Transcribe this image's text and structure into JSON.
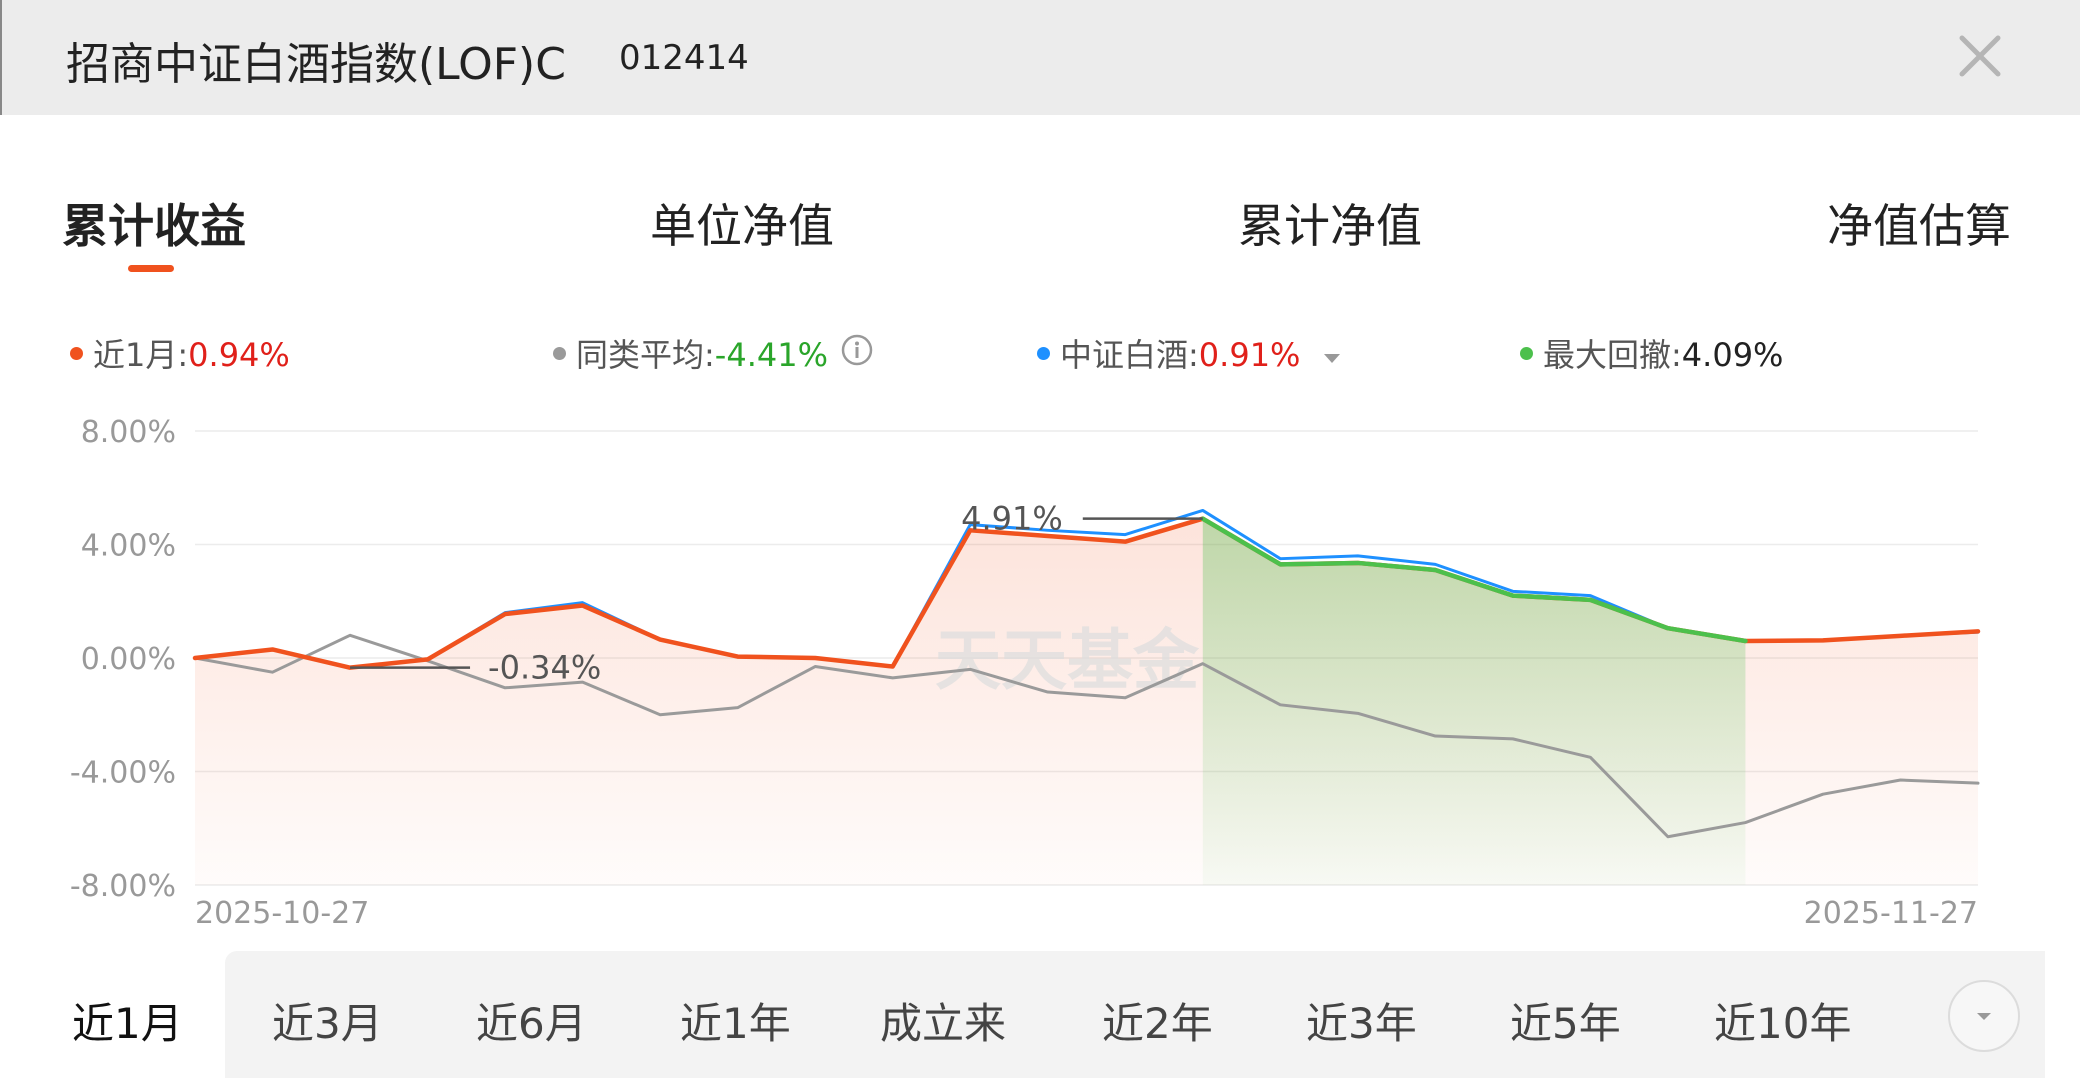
{
  "header": {
    "fund_name": "招商中证白酒指数(LOF)C",
    "fund_code": "012414",
    "close_icon": "close-icon"
  },
  "tabs": [
    {
      "label": "累计收益",
      "active": true
    },
    {
      "label": "单位净值",
      "active": false
    },
    {
      "label": "累计净值",
      "active": false
    },
    {
      "label": "净值估算",
      "active": false
    }
  ],
  "legend": {
    "fund": {
      "label": "近1月:",
      "value": "0.94%",
      "color": "#f0521e",
      "value_color": "#e0201a"
    },
    "peer": {
      "label": "同类平均:",
      "value": "-4.41%",
      "color": "#9a9a9a",
      "value_color": "#2aa52a"
    },
    "index": {
      "label": "中证白酒:",
      "value": "0.91%",
      "color": "#1e90ff",
      "value_color": "#e0201a"
    },
    "drawdown": {
      "label": "最大回撤:",
      "value": "4.09%",
      "color": "#4cc04c",
      "value_color": "#222222"
    }
  },
  "watermark": "天天基金",
  "chart_data": {
    "type": "line",
    "x_start_label": "2025-10-27",
    "x_end_label": "2025-11-27",
    "y_ticks": [
      "8.00%",
      "4.00%",
      "0.00%",
      "-4.00%",
      "-8.00%"
    ],
    "ylim": [
      -8,
      8
    ],
    "grid": true,
    "series": [
      {
        "name": "近1月",
        "color": "#f0521e",
        "values": [
          0.0,
          0.3,
          -0.34,
          -0.05,
          1.55,
          1.85,
          0.65,
          0.05,
          0.0,
          -0.3,
          4.5,
          4.3,
          4.1,
          4.91,
          3.3,
          3.35,
          3.1,
          2.2,
          2.05,
          1.05,
          0.6,
          0.62,
          0.78,
          0.94
        ]
      },
      {
        "name": "同类平均",
        "color": "#9a9a9a",
        "values": [
          0.0,
          -0.5,
          0.8,
          -0.1,
          -1.05,
          -0.85,
          -2.0,
          -1.75,
          -0.3,
          -0.7,
          -0.4,
          -1.2,
          -1.4,
          -0.2,
          -1.65,
          -1.95,
          -2.75,
          -2.85,
          -3.5,
          -6.3,
          -5.8,
          -4.8,
          -4.3,
          -4.41
        ]
      },
      {
        "name": "中证白酒",
        "color": "#1e90ff",
        "values": [
          0.0,
          0.3,
          -0.34,
          -0.05,
          1.6,
          1.95,
          0.65,
          0.05,
          0.0,
          -0.3,
          4.7,
          4.5,
          4.35,
          5.2,
          3.5,
          3.6,
          3.3,
          2.35,
          2.2,
          1.05,
          0.6,
          0.62,
          0.78,
          0.91
        ]
      }
    ],
    "max_drawdown": {
      "start_index": 13,
      "end_index": 20,
      "value": "4.09%",
      "color": "#4cc04c"
    },
    "annotations": [
      {
        "text": "4.91%",
        "index": 13,
        "value": 4.91
      },
      {
        "text": "-0.34%",
        "index": 2,
        "value": -0.34
      }
    ]
  },
  "periods": [
    {
      "label": "近1月",
      "active": true
    },
    {
      "label": "近3月",
      "active": false
    },
    {
      "label": "近6月",
      "active": false
    },
    {
      "label": "近1年",
      "active": false
    },
    {
      "label": "成立来",
      "active": false
    },
    {
      "label": "近2年",
      "active": false
    },
    {
      "label": "近3年",
      "active": false
    },
    {
      "label": "近5年",
      "active": false
    },
    {
      "label": "近10年",
      "active": false
    }
  ],
  "more_icon": "chevron-down-icon"
}
